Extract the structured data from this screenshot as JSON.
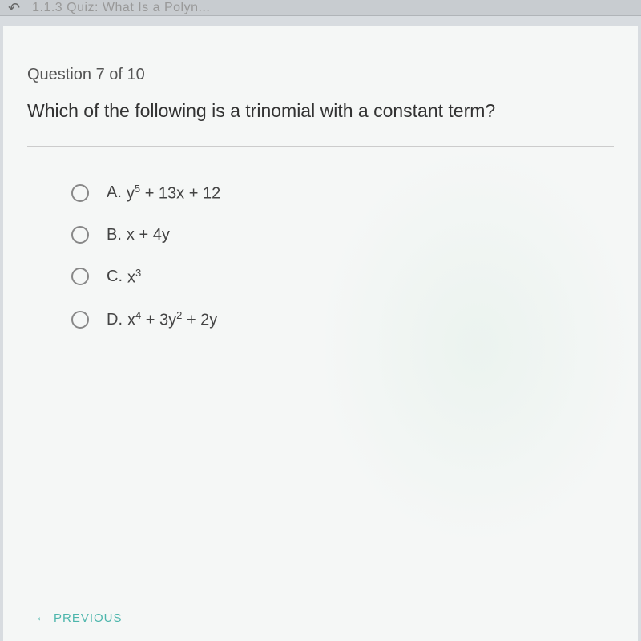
{
  "header": {
    "backIcon": "↶",
    "quizLabel": "1.1.3 Quiz: What Is a Polyn..."
  },
  "question": {
    "number": "Question 7 of 10",
    "text": "Which of the following is a trinomial with a constant term?"
  },
  "options": [
    {
      "label": "A.",
      "base1": "y",
      "exp1": "5",
      "mid": " + 13x + 12",
      "base2": "",
      "exp2": "",
      "tail": ""
    },
    {
      "label": "B.",
      "base1": "x + 4y",
      "exp1": "",
      "mid": "",
      "base2": "",
      "exp2": "",
      "tail": ""
    },
    {
      "label": "C.",
      "base1": "x",
      "exp1": "3",
      "mid": "",
      "base2": "",
      "exp2": "",
      "tail": ""
    },
    {
      "label": "D.",
      "base1": "x",
      "exp1": "4",
      "mid": " + 3y",
      "base2": "",
      "exp2": "2",
      "tail": " + 2y"
    }
  ],
  "nav": {
    "previousArrow": "←",
    "previousLabel": "PREVIOUS"
  },
  "styles": {
    "accent_color": "#4db6ac",
    "background_color": "#f5f7f6",
    "header_color": "#c8ccd0",
    "text_color": "#444",
    "radio_border": "#888"
  }
}
